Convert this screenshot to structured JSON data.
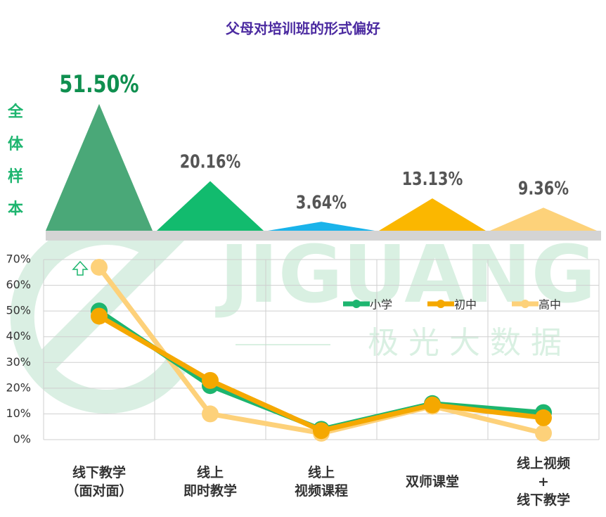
{
  "chart_data": [
    {
      "type": "triangle",
      "title": "父母对培训班的形式偏好",
      "label": "全体样本",
      "values": [
        51.5,
        20.16,
        3.64,
        13.13,
        9.36
      ],
      "value_labels": [
        "51.50%",
        "20.16%",
        "3.64%",
        "13.13%",
        "9.36%"
      ],
      "colors": [
        "#4aa878",
        "#12bb6e",
        "#1ab3ea",
        "#fbb700",
        "#fdd27a"
      ],
      "label_colors": [
        "#0f8f4f",
        "#555555",
        "#555555",
        "#555555",
        "#555555"
      ]
    },
    {
      "type": "line",
      "categories": [
        "线下教学\n（面对面）",
        "线上\n即时教学",
        "线上\n视频课程",
        "双师课堂",
        "线上视频\n+\n线下教学"
      ],
      "series": [
        {
          "name": "小学",
          "color": "#1db56f",
          "values": [
            50,
            21,
            4,
            14,
            10.5
          ]
        },
        {
          "name": "初中",
          "color": "#f5a800",
          "values": [
            48,
            23,
            3.5,
            13.5,
            8.5
          ]
        },
        {
          "name": "高中",
          "color": "#fdd17a",
          "values": [
            67,
            10,
            2.5,
            13,
            2.5
          ]
        }
      ],
      "ylim": [
        0,
        70
      ],
      "yticks": [
        {
          "value": 0,
          "label": "0%"
        },
        {
          "value": 10,
          "label": "10%"
        },
        {
          "value": 20,
          "label": "20%"
        },
        {
          "value": 30,
          "label": "30%"
        },
        {
          "value": 40,
          "label": "40%"
        },
        {
          "value": 50,
          "label": "50%"
        },
        {
          "value": 60,
          "label": "60%"
        },
        {
          "value": 70,
          "label": "70%"
        }
      ],
      "grid": true
    }
  ],
  "watermark": {
    "brand": "JIGUANG",
    "name": "极光大数据"
  }
}
